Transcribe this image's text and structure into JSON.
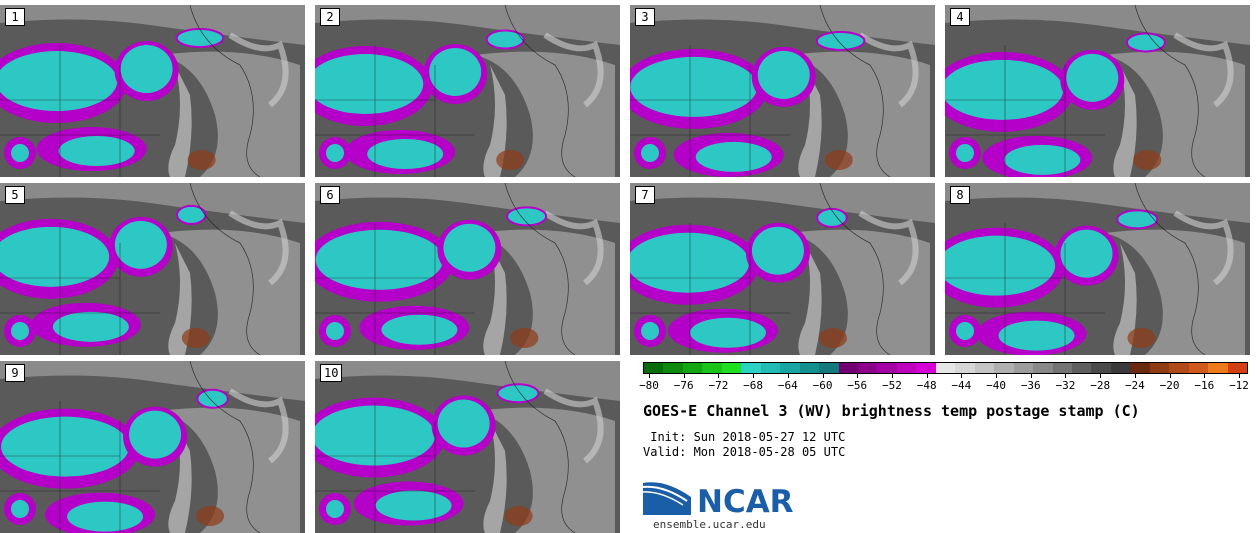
{
  "panels": [
    {
      "label": "1"
    },
    {
      "label": "2"
    },
    {
      "label": "3"
    },
    {
      "label": "4"
    },
    {
      "label": "5"
    },
    {
      "label": "6"
    },
    {
      "label": "7"
    },
    {
      "label": "8"
    },
    {
      "label": "9"
    },
    {
      "label": "10"
    }
  ],
  "colorbar": {
    "colors": [
      "#0a6b0a",
      "#0e8a0e",
      "#13a613",
      "#18c418",
      "#1ddf1d",
      "#2bd4c2",
      "#22bcb4",
      "#1aa5a5",
      "#168f91",
      "#12797d",
      "#720072",
      "#8a008a",
      "#a500a5",
      "#bd00bd",
      "#d400d4",
      "#e6e6e6",
      "#d6d6d6",
      "#c4c4c4",
      "#b0b0b0",
      "#9c9c9c",
      "#888888",
      "#747474",
      "#5f5f5f",
      "#4a4a4a",
      "#3a3a3a",
      "#6b2a10",
      "#8e3a14",
      "#b04a18",
      "#cf5a1c",
      "#ee7a1e",
      "#d43e12"
    ],
    "tick_labels": [
      "−80",
      "−76",
      "−72",
      "−68",
      "−64",
      "−60",
      "−56",
      "−52",
      "−48",
      "−44",
      "−40",
      "−36",
      "−32",
      "−28",
      "−24",
      "−20",
      "−16",
      "−12"
    ]
  },
  "title": "GOES-E Channel 3 (WV) brightness temp postage stamp (C)",
  "init": " Init: Sun 2018-05-27 12 UTC",
  "valid": "Valid: Mon 2018-05-28 05 UTC",
  "logo_text": "NCAR",
  "url": "ensemble.ucar.edu",
  "palette": {
    "cyan": "#2ec8c4",
    "magenta": "#b400c8",
    "grey_dark": "#5a5a5a",
    "grey_light": "#b8b8b8",
    "rust": "#8e3a14"
  }
}
